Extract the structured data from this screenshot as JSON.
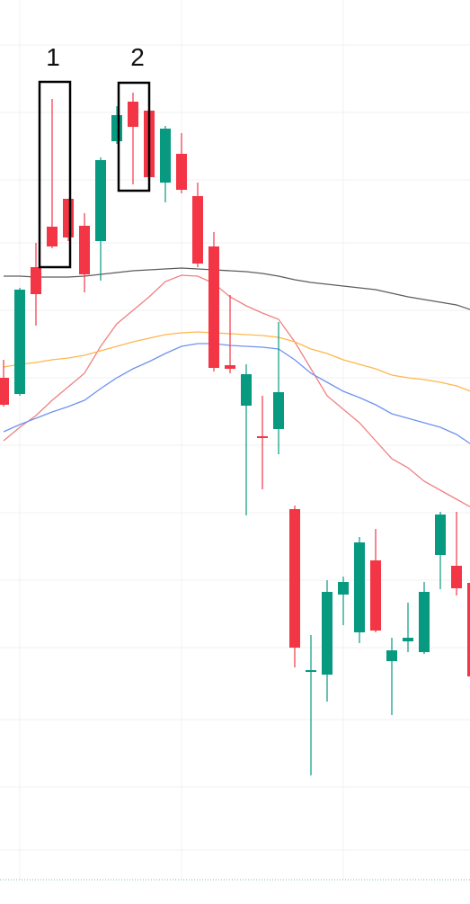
{
  "chart_data": {
    "type": "candlestick",
    "ylim": [
      0,
      1005
    ],
    "up_color": "#089981",
    "down_color": "#f23645",
    "open": [
      585,
      567,
      708,
      753,
      784,
      754,
      737,
      848,
      892,
      882,
      802,
      834,
      787,
      731,
      599,
      554,
      520,
      528,
      439,
      258,
      255,
      344,
      302,
      382,
      270,
      292,
      280,
      388,
      376,
      357
    ],
    "high": [
      605,
      685,
      735,
      895,
      784,
      768,
      830,
      887,
      902,
      882,
      865,
      857,
      802,
      747,
      677,
      600,
      565,
      647,
      443,
      299,
      360,
      364,
      408,
      417,
      296,
      335,
      358,
      436,
      436,
      357
    ],
    "low": [
      553,
      565,
      643,
      729,
      737,
      680,
      693,
      845,
      800,
      795,
      780,
      790,
      708,
      592,
      590,
      432,
      461,
      500,
      263,
      143,
      225,
      310,
      290,
      302,
      210,
      280,
      278,
      350,
      343,
      253
    ],
    "close": [
      555,
      683,
      678,
      731,
      741,
      700,
      827,
      877,
      864,
      808,
      862,
      794,
      712,
      596,
      595,
      589,
      518,
      569,
      285,
      260,
      347,
      358,
      402,
      304,
      282,
      296,
      347,
      433,
      351,
      253
    ],
    "series": [
      {
        "color": "#f08080",
        "values": [
          515,
          530,
          543,
          560,
          575,
          590,
          620,
          645,
          660,
          675,
          692,
          699,
          698,
          690,
          675,
          665,
          657,
          650,
          625,
          595,
          565,
          550,
          535,
          515,
          495,
          485,
          470,
          460,
          450,
          440
        ]
      },
      {
        "color": "#6f93ef",
        "values": [
          525,
          533,
          540,
          547,
          553,
          560,
          573,
          585,
          595,
          603,
          612,
          620,
          623,
          623,
          621,
          620,
          619,
          617,
          605,
          590,
          580,
          570,
          563,
          555,
          545,
          540,
          535,
          530,
          522,
          510
        ]
      },
      {
        "color": "#ffb74d",
        "values": [
          597,
          600,
          602,
          605,
          607,
          610,
          615,
          620,
          625,
          629,
          633,
          635,
          636,
          635,
          634,
          633,
          632,
          630,
          625,
          617,
          612,
          605,
          600,
          595,
          588,
          585,
          583,
          580,
          576,
          569
        ]
      },
      {
        "color": "#5d5d5d",
        "values": [
          698,
          698,
          697,
          697,
          697,
          698,
          700,
          702,
          704,
          705,
          706,
          707,
          706,
          705,
          704,
          703,
          701,
          698,
          694,
          691,
          689,
          687,
          685,
          683,
          679,
          675,
          672,
          669,
          666,
          660
        ]
      }
    ],
    "annotations": [
      {
        "label": "1"
      },
      {
        "label": "2"
      }
    ]
  }
}
